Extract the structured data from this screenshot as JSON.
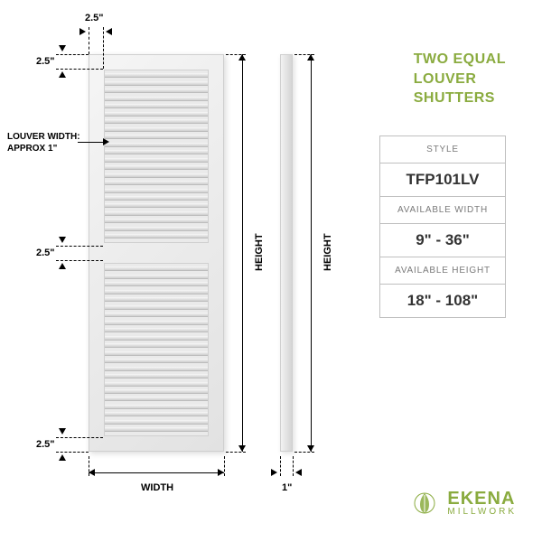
{
  "title": {
    "line1": "TWO EQUAL",
    "line2": "LOUVER",
    "line3": "SHUTTERS",
    "color": "#8aab3f",
    "fontsize": 16
  },
  "specs": {
    "style_label": "STYLE",
    "style_value": "TFP101LV",
    "width_label": "AVAILABLE WIDTH",
    "width_value": "9\" - 36\"",
    "height_label": "AVAILABLE HEIGHT",
    "height_value": "18\" - 108\"",
    "border_color": "#bfbfbf",
    "header_color": "#7a7a7a",
    "value_color": "#333333"
  },
  "dimensions": {
    "top_rail": "2.5\"",
    "side_rail": "2.5\"",
    "mid_rail": "2.5\"",
    "bottom_rail": "2.5\"",
    "side_thickness": "1\"",
    "louver_note_l1": "LOUVER WIDTH:",
    "louver_note_l2": "APPROX 1\"",
    "width_label": "WIDTH",
    "height_label": "HEIGHT",
    "label_color": "#000000",
    "label_fontsize": 11
  },
  "rendering": {
    "shutter_fill_light": "#f5f5f5",
    "shutter_fill_dark": "#e2e2e2",
    "shutter_border": "#cfcfcf",
    "louver_count_per_section": 22,
    "background": "#ffffff"
  },
  "logo": {
    "line1": "EKENA",
    "line2": "MILLWORK",
    "color": "#8aab3f"
  }
}
